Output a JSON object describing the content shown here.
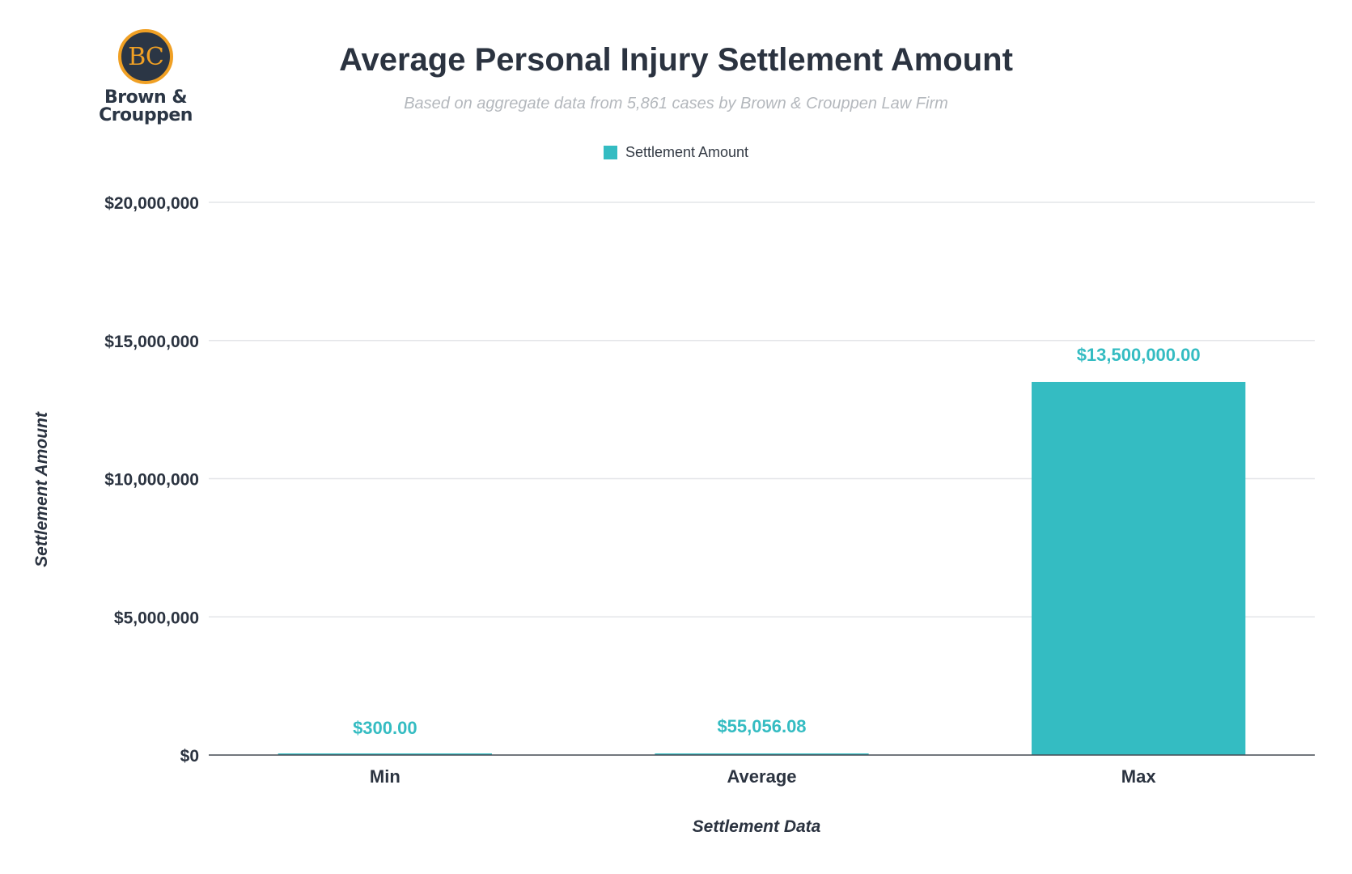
{
  "logo": {
    "mark": "BC",
    "name_line1": "Brown &",
    "name_line2": "Crouppen"
  },
  "colors": {
    "bar": "#34bcc2",
    "gridline": "#e3e5e8",
    "axis": "#444a52",
    "text": "#2b3340"
  },
  "chart_data": {
    "type": "bar",
    "title": "Average Personal Injury Settlement Amount",
    "subtitle": "Based on aggregate data from 5,861 cases by Brown & Crouppen Law Firm",
    "xlabel": "Settlement Data",
    "ylabel": "Settlement Amount",
    "categories": [
      "Min",
      "Average",
      "Max"
    ],
    "series": [
      {
        "name": "Settlement Amount",
        "values": [
          300,
          55056.08,
          13500000
        ],
        "data_labels": [
          "$300.00",
          "$55,056.08",
          "$13,500,000.00"
        ]
      }
    ],
    "ylim": [
      0,
      20000000
    ],
    "yticks": [
      0,
      5000000,
      10000000,
      15000000,
      20000000
    ],
    "ytick_labels": [
      "$0",
      "$5,000,000",
      "$10,000,000",
      "$15,000,000",
      "$20,000,000"
    ],
    "grid": true,
    "legend_position": "top-center"
  }
}
